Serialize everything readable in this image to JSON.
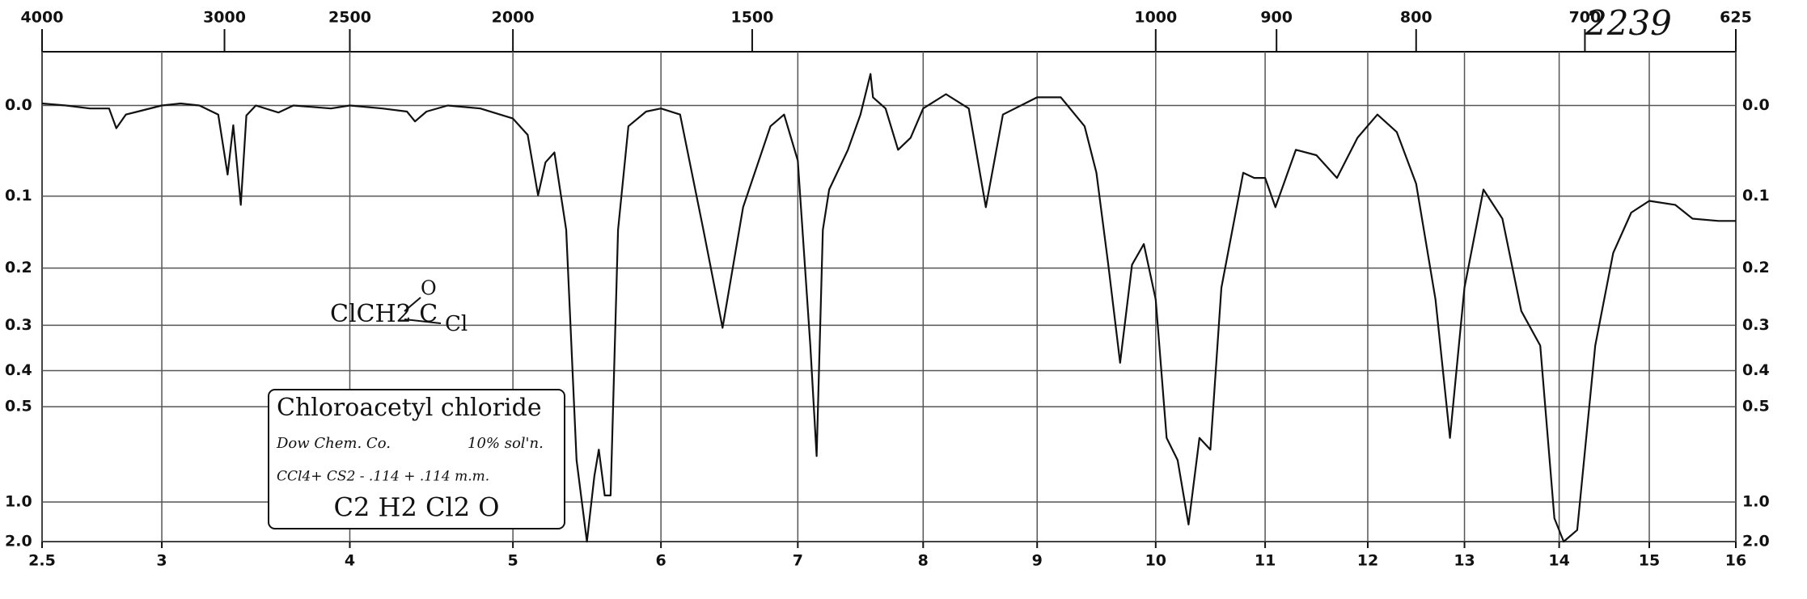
{
  "chart_data": {
    "type": "line",
    "yscale": "transmittance",
    "grid": true,
    "color": "#111111",
    "x": [
      2.5,
      2.6,
      2.7,
      2.78,
      2.81,
      2.85,
      2.9,
      3.0,
      3.1,
      3.2,
      3.3,
      3.35,
      3.38,
      3.42,
      3.45,
      3.5,
      3.62,
      3.7,
      3.9,
      4.0,
      4.2,
      4.35,
      4.4,
      4.47,
      4.6,
      4.8,
      5.0,
      5.1,
      5.17,
      5.22,
      5.28,
      5.36,
      5.43,
      5.5,
      5.55,
      5.58,
      5.62,
      5.66,
      5.71,
      5.78,
      5.9,
      6.0,
      6.14,
      6.31,
      6.45,
      6.6,
      6.8,
      6.9,
      7.0,
      7.1,
      7.15,
      7.2,
      7.25,
      7.4,
      7.5,
      7.58,
      7.6,
      7.7,
      7.8,
      7.9,
      8.0,
      8.2,
      8.4,
      8.55,
      8.7,
      9.0,
      9.2,
      9.4,
      9.5,
      9.6,
      9.7,
      9.8,
      9.9,
      10.0,
      10.1,
      10.2,
      10.3,
      10.4,
      10.5,
      10.6,
      10.8,
      10.9,
      11.0,
      11.1,
      11.3,
      11.5,
      11.7,
      11.9,
      12.1,
      12.3,
      12.5,
      12.7,
      12.85,
      13.0,
      13.2,
      13.4,
      13.6,
      13.8,
      13.95,
      14.05,
      14.2,
      14.4,
      14.6,
      14.8,
      15.0,
      15.3,
      15.5,
      15.8,
      16.0
    ],
    "values": [
      -0.002,
      0.0,
      0.003,
      0.003,
      0.023,
      0.009,
      0.006,
      0.0,
      -0.002,
      0.0,
      0.009,
      0.074,
      0.02,
      0.111,
      0.01,
      0.0,
      0.007,
      0.0,
      0.003,
      0.0,
      0.003,
      0.006,
      0.016,
      0.006,
      0.0,
      0.003,
      0.013,
      0.03,
      0.099,
      0.06,
      0.049,
      0.144,
      0.71,
      2.0,
      0.8,
      0.66,
      0.94,
      0.94,
      0.144,
      0.021,
      0.006,
      0.003,
      0.009,
      0.144,
      0.305,
      0.114,
      0.021,
      0.009,
      0.058,
      0.342,
      0.69,
      0.144,
      0.092,
      0.046,
      0.009,
      -0.03,
      -0.008,
      0.003,
      0.046,
      0.033,
      0.003,
      -0.011,
      0.003,
      0.114,
      0.009,
      -0.008,
      -0.008,
      0.021,
      0.072,
      0.195,
      0.381,
      0.195,
      0.164,
      0.252,
      0.61,
      0.71,
      1.31,
      0.61,
      0.66,
      0.232,
      0.072,
      0.078,
      0.078,
      0.114,
      0.046,
      0.052,
      0.078,
      0.033,
      0.009,
      0.027,
      0.085,
      0.252,
      0.61,
      0.232,
      0.092,
      0.129,
      0.273,
      0.342,
      1.2,
      2.0,
      1.44,
      0.342,
      0.177,
      0.121,
      0.106,
      0.111,
      0.129,
      0.132,
      0.132
    ],
    "xlim": [
      2.5,
      16
    ],
    "xticks": [
      2.5,
      3,
      4,
      5,
      6,
      7,
      8,
      9,
      10,
      11,
      12,
      13,
      14,
      15,
      16
    ],
    "x2ticks": [
      4000,
      3000,
      2500,
      2000,
      1500,
      1000,
      900,
      800,
      700,
      625
    ],
    "ylim": [
      -0.05,
      2
    ],
    "yticks": [
      {
        "value": 0,
        "label": "0.0"
      },
      0.1,
      0.2,
      0.3,
      0.4,
      0.5,
      {
        "value": 1,
        "label": "1.0"
      },
      {
        "value": 2,
        "label": "2.0"
      }
    ],
    "annotations": {
      "sample_number": "2239",
      "structure": "ClCH2 C",
      "structure_o": "O",
      "structure_cl": "Cl",
      "name": "Chloroacetyl chloride",
      "source": "Dow Chem. Co.",
      "concentration": "10% sol'n.",
      "solvent": "CCl4+ CS2 - .114 + .114 m.m.",
      "formula": "C2 H2 Cl2 O"
    }
  }
}
